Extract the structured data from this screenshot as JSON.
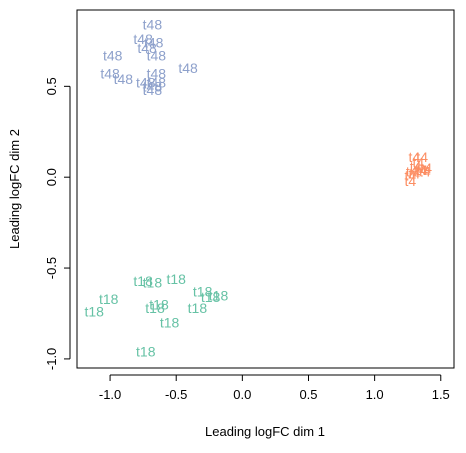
{
  "chart_data": {
    "type": "scatter",
    "title": "",
    "xlabel": "Leading logFC dim 1",
    "ylabel": "Leading logFC dim 2",
    "xlim": [
      -1.25,
      1.6
    ],
    "ylim": [
      -1.05,
      0.92
    ],
    "x_ticks": [
      -1.0,
      -0.5,
      0.0,
      0.5,
      1.0,
      1.5
    ],
    "x_tick_labels": [
      "-1.0",
      "-0.5",
      "0.0",
      "0.5",
      "1.0",
      "1.5"
    ],
    "y_ticks": [
      -1.0,
      -0.5,
      0.0,
      0.5
    ],
    "y_tick_labels": [
      "-1.0",
      "-0.5",
      "0.0",
      "0.5"
    ],
    "grid": false,
    "legend": "none",
    "series": [
      {
        "label": "t48",
        "color": "#8da0cb",
        "points": [
          [
            -0.68,
            0.84
          ],
          [
            -0.75,
            0.76
          ],
          [
            -0.67,
            0.74
          ],
          [
            -0.72,
            0.71
          ],
          [
            -0.98,
            0.67
          ],
          [
            -0.65,
            0.67
          ],
          [
            -0.41,
            0.6
          ],
          [
            -1.0,
            0.57
          ],
          [
            -0.65,
            0.57
          ],
          [
            -0.9,
            0.54
          ],
          [
            -0.65,
            0.52
          ],
          [
            -0.73,
            0.52
          ],
          [
            -0.68,
            0.5
          ],
          [
            -0.68,
            0.48
          ]
        ]
      },
      {
        "label": "t4",
        "color": "#fc8d62",
        "points": [
          [
            1.3,
            0.11
          ],
          [
            1.36,
            0.11
          ],
          [
            1.33,
            0.08
          ],
          [
            1.31,
            0.06
          ],
          [
            1.39,
            0.05
          ],
          [
            1.35,
            0.04
          ],
          [
            1.36,
            0.04
          ],
          [
            1.28,
            0.03
          ],
          [
            1.3,
            0.02
          ],
          [
            1.38,
            0.03
          ],
          [
            1.27,
            0.01
          ],
          [
            1.27,
            -0.02
          ]
        ]
      },
      {
        "label": "t18",
        "color": "#66c2a5",
        "points": [
          [
            -0.5,
            -0.56
          ],
          [
            -0.75,
            -0.57
          ],
          [
            -0.68,
            -0.58
          ],
          [
            -0.3,
            -0.63
          ],
          [
            -0.18,
            -0.65
          ],
          [
            -0.24,
            -0.66
          ],
          [
            -1.01,
            -0.67
          ],
          [
            -0.63,
            -0.7
          ],
          [
            -0.66,
            -0.72
          ],
          [
            -0.34,
            -0.72
          ],
          [
            -1.12,
            -0.74
          ],
          [
            -0.55,
            -0.8
          ],
          [
            -0.73,
            -0.96
          ]
        ]
      }
    ]
  }
}
